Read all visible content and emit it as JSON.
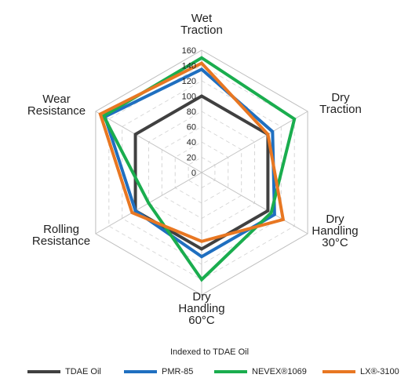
{
  "chart_data": {
    "type": "radar",
    "axes": [
      [
        "Wet",
        "Traction"
      ],
      [
        "Dry",
        "Traction"
      ],
      [
        "Dry",
        "Handling",
        "30°C"
      ],
      [
        "Dry",
        "Handling",
        "60°C"
      ],
      [
        "Rolling",
        "Resistance"
      ],
      [
        "Wear",
        "Resistance"
      ]
    ],
    "ticks": [
      "0",
      "20",
      "40",
      "60",
      "80",
      "100",
      "120",
      "140",
      "160"
    ],
    "rlim": [
      0,
      160
    ],
    "grid": true,
    "legend_position": "bottom",
    "note": "Indexed to TDAE Oil",
    "series": [
      {
        "name": "TDAE Oil",
        "color": "#404040",
        "values": [
          100,
          100,
          100,
          100,
          100,
          100
        ]
      },
      {
        "name": "PMR-85",
        "color": "#1f6fc0",
        "values": [
          135,
          107,
          110,
          110,
          100,
          146
        ]
      },
      {
        "name": "NEVEX®1069",
        "color": "#1aad4e",
        "values": [
          150,
          140,
          105,
          140,
          80,
          148
        ]
      },
      {
        "name": "LX®-3100",
        "color": "#e87722",
        "values": [
          143,
          100,
          123,
          90,
          105,
          153
        ]
      }
    ]
  }
}
